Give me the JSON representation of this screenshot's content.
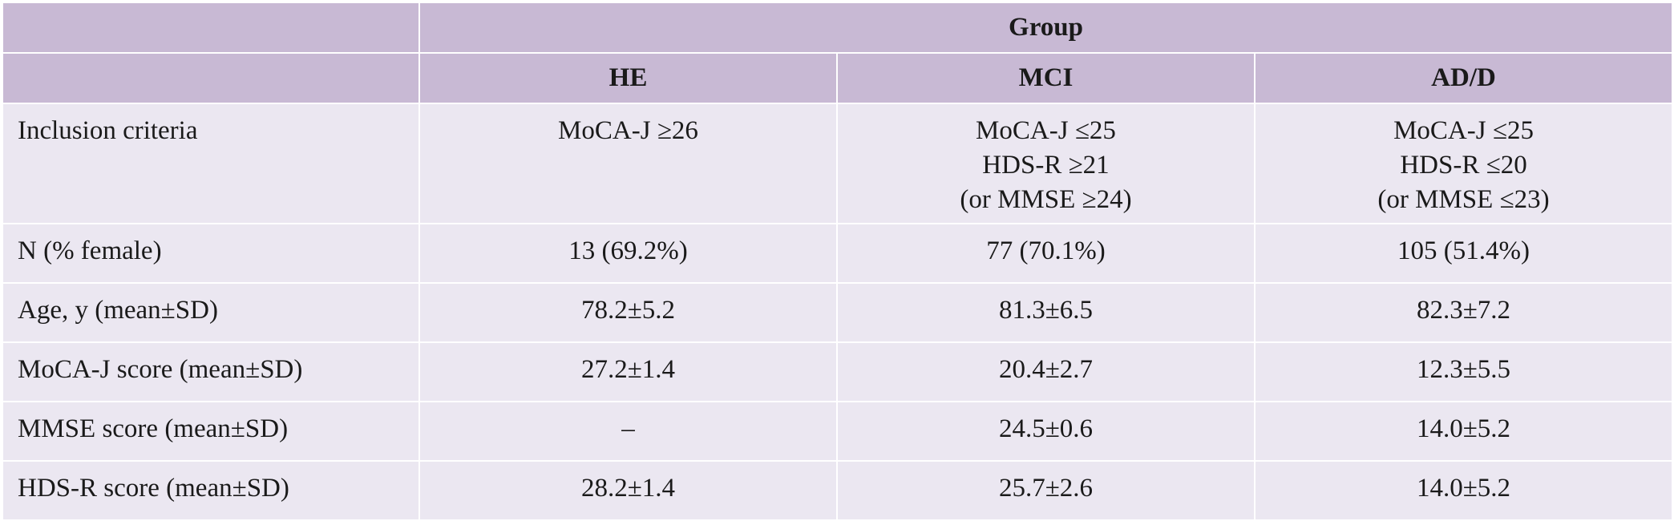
{
  "table": {
    "group_header": "Group",
    "columns": [
      "HE",
      "MCI",
      "AD/D"
    ],
    "rows": [
      {
        "label": "Inclusion criteria",
        "cells": [
          [
            "MoCA-J ≥26"
          ],
          [
            "MoCA-J ≤25",
            "HDS-R ≥21",
            "(or MMSE ≥24)"
          ],
          [
            "MoCA-J ≤25",
            "HDS-R ≤20",
            "(or MMSE ≤23)"
          ]
        ]
      },
      {
        "label": "N (% female)",
        "cells": [
          "13 (69.2%)",
          "77 (70.1%)",
          "105 (51.4%)"
        ]
      },
      {
        "label": "Age, y (mean±SD)",
        "cells": [
          "78.2±5.2",
          "81.3±6.5",
          "82.3±7.2"
        ]
      },
      {
        "label": "MoCA-J score (mean±SD)",
        "cells": [
          "27.2±1.4",
          "20.4±2.7",
          "12.3±5.5"
        ]
      },
      {
        "label": "MMSE score (mean±SD)",
        "cells": [
          "–",
          "24.5±0.6",
          "14.0±5.2"
        ]
      },
      {
        "label": "HDS-R score (mean±SD)",
        "cells": [
          "28.2±1.4",
          "25.7±2.6",
          "14.0±5.2"
        ]
      }
    ]
  },
  "colors": {
    "header_bg": "#c8b9d4",
    "body_bg": "#ebe7f1",
    "border": "#222222"
  }
}
